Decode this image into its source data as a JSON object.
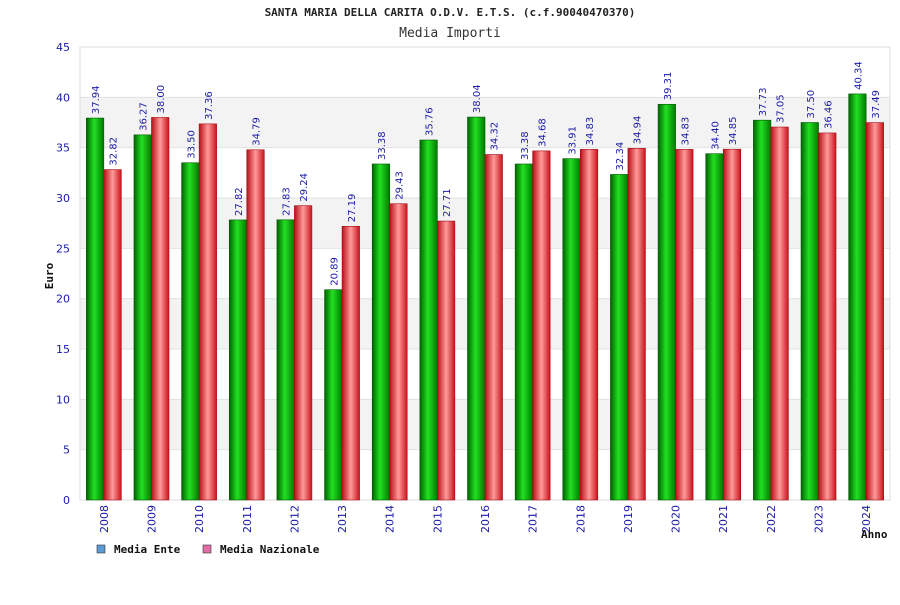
{
  "chart_data": {
    "type": "bar",
    "title": "SANTA MARIA DELLA CARITA O.D.V. E.T.S. (c.f.90040470370)",
    "subtitle": "Media Importi",
    "xlabel": "Anno",
    "ylabel": "Euro",
    "ylim": [
      0,
      45
    ],
    "yticks": [
      0,
      5,
      10,
      15,
      20,
      25,
      30,
      35,
      40,
      45
    ],
    "categories": [
      "2008",
      "2009",
      "2010",
      "2011",
      "2012",
      "2013",
      "2014",
      "2015",
      "2016",
      "2017",
      "2018",
      "2019",
      "2020",
      "2021",
      "2022",
      "2023",
      "2024"
    ],
    "series": [
      {
        "name": "Media Ente",
        "color": "#00b400",
        "values": [
          37.94,
          36.27,
          33.5,
          27.82,
          27.83,
          20.89,
          33.38,
          35.76,
          38.04,
          33.38,
          33.91,
          32.34,
          39.31,
          34.4,
          37.73,
          37.5,
          40.34
        ],
        "labels": [
          "37.94",
          "36.27",
          "33.50",
          "27.82",
          "27.83",
          "20.89",
          "33.38",
          "35.76",
          "38.04",
          "33.38",
          "33.91",
          "32.34",
          "39.31",
          "34.40",
          "37.73",
          "37.50",
          "40.34"
        ]
      },
      {
        "name": "Media Nazionale",
        "color": "#e02a2a",
        "values": [
          32.82,
          38.0,
          37.36,
          34.79,
          29.24,
          27.19,
          29.43,
          27.71,
          34.32,
          34.68,
          34.83,
          34.94,
          34.83,
          34.85,
          37.05,
          36.46,
          37.49
        ],
        "labels": [
          "32.82",
          "38.00",
          "37.36",
          "34.79",
          "29.24",
          "27.19",
          "29.43",
          "27.71",
          "34.32",
          "34.68",
          "34.83",
          "34.94",
          "34.83",
          "34.85",
          "37.05",
          "36.46",
          "37.49"
        ]
      }
    ],
    "legend": [
      {
        "label": "Media Ente",
        "swatch": "#5b9bd5"
      },
      {
        "label": "Media Nazionale",
        "swatch": "#e06fa8"
      }
    ],
    "legend_position": "bottom-left",
    "grid": true
  }
}
